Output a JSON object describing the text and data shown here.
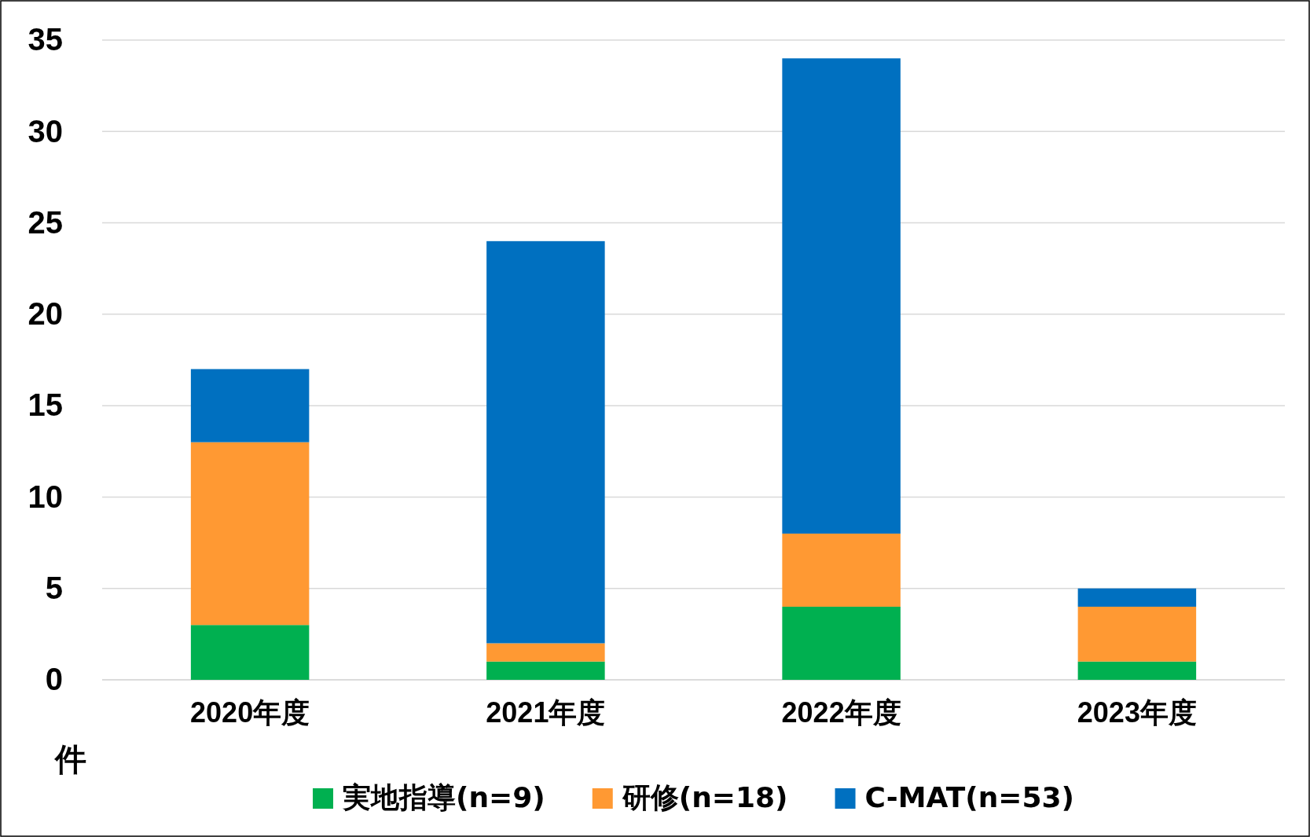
{
  "chart_data": {
    "type": "bar",
    "stacked": true,
    "ylabel": "件",
    "categories": [
      "2020年度",
      "2021年度",
      "2022年度",
      "2023年度"
    ],
    "series": [
      {
        "name": "実地指導(n=9)",
        "color": "#00b050",
        "values": [
          3,
          1,
          4,
          1
        ]
      },
      {
        "name": "研修(n=18)",
        "color": "#ff9933",
        "values": [
          10,
          1,
          4,
          3
        ]
      },
      {
        "name": "C-MAT(n=53)",
        "color": "#0070c0",
        "values": [
          4,
          22,
          26,
          1
        ]
      }
    ],
    "ylim": [
      0,
      35
    ],
    "yticks": [
      0,
      5,
      10,
      15,
      20,
      25,
      30,
      35
    ],
    "grid": "y",
    "legend": "bottom"
  }
}
